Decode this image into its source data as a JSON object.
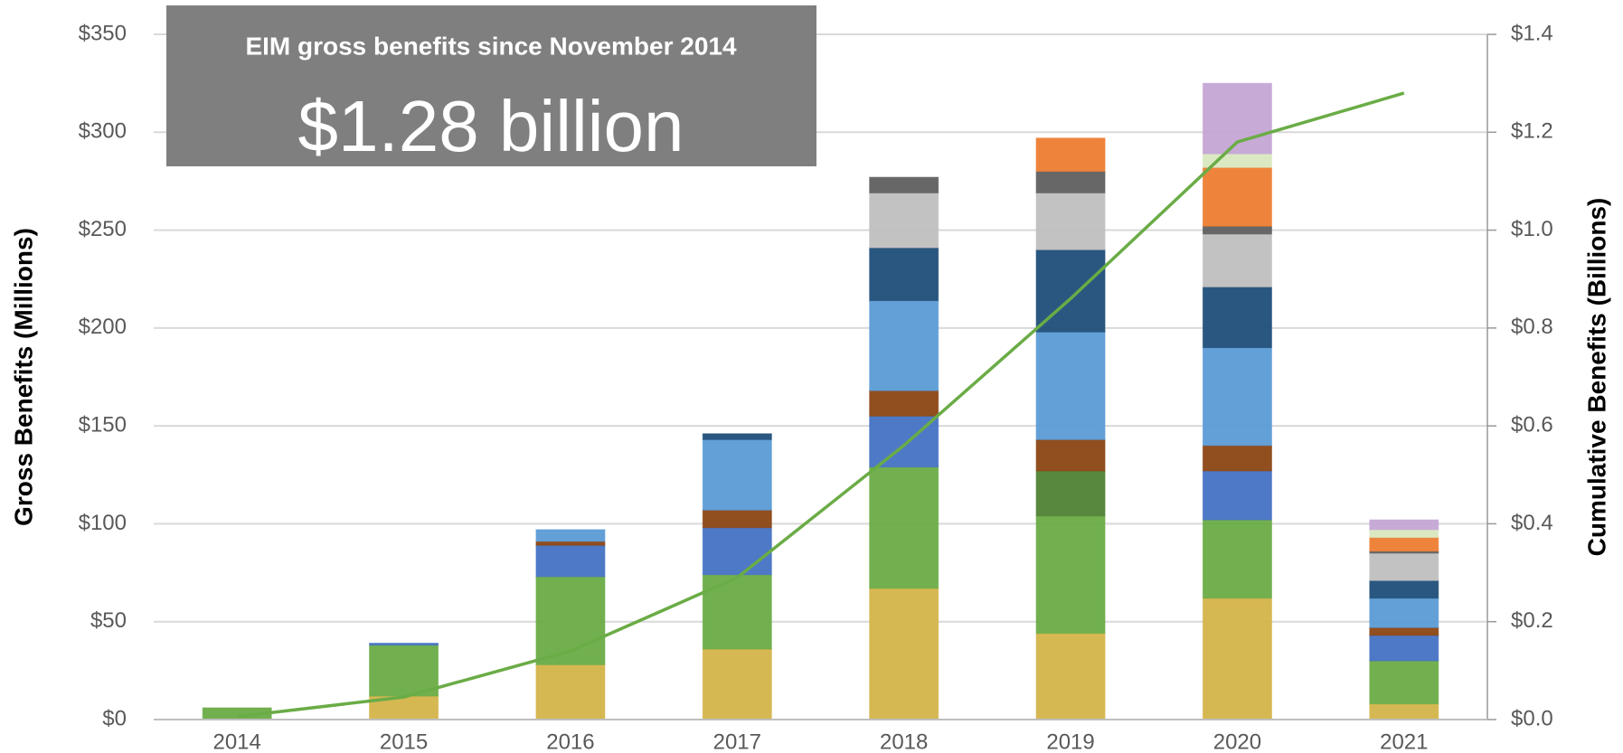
{
  "chart_data": {
    "type": "stacked_bar",
    "categories": [
      "2014",
      "2015",
      "2016",
      "2017",
      "2018",
      "2019",
      "2020",
      "2021"
    ],
    "series": [
      {
        "color": "#d4b44a",
        "values": [
          0,
          12,
          28,
          36,
          67,
          44,
          62,
          8
        ]
      },
      {
        "color": "#6aac46",
        "values": [
          6,
          26,
          45,
          38,
          62,
          60,
          40,
          22
        ]
      },
      {
        "color": "#4f8233",
        "values": [
          0,
          0,
          0,
          0,
          0,
          23,
          0,
          0
        ]
      },
      {
        "color": "#4472c4",
        "values": [
          0,
          1,
          16,
          24,
          26,
          0,
          25,
          13
        ]
      },
      {
        "color": "#8b4513",
        "values": [
          0,
          0,
          2,
          9,
          13,
          16,
          13,
          4
        ]
      },
      {
        "color": "#5b9bd5",
        "values": [
          0,
          0,
          6,
          36,
          46,
          55,
          50,
          15
        ]
      },
      {
        "color": "#1f4e79",
        "values": [
          0,
          0,
          0,
          3,
          27,
          42,
          31,
          9
        ]
      },
      {
        "color": "#bfbfbf",
        "values": [
          0,
          0,
          0,
          0,
          28,
          29,
          27,
          14
        ]
      },
      {
        "color": "#5f5f5f",
        "values": [
          0,
          0,
          0,
          0,
          8,
          11,
          4,
          1
        ]
      },
      {
        "color": "#ed7d31",
        "values": [
          0,
          0,
          0,
          0,
          0,
          17,
          30,
          7
        ]
      },
      {
        "color": "#d9e8c0",
        "values": [
          0,
          0,
          0,
          0,
          0,
          0,
          7,
          4
        ]
      },
      {
        "color": "#c5a5d5",
        "values": [
          0,
          0,
          0,
          0,
          0,
          0,
          36,
          5
        ]
      },
      {
        "type": "line",
        "axis": "y2",
        "color": "#6aac46",
        "values": [
          0.006,
          0.046,
          0.14,
          0.29,
          0.56,
          0.86,
          1.18,
          1.28
        ]
      }
    ],
    "ylabel": "Gross Benefits (Millions)",
    "y2label": "Cumulative Benefits (Billions)",
    "ylim": [
      0,
      350
    ],
    "yticks": [
      {
        "value": 0,
        "label": "$0"
      },
      {
        "value": 50,
        "label": "$50"
      },
      {
        "value": 100,
        "label": "$100"
      },
      {
        "value": 150,
        "label": "$150"
      },
      {
        "value": 200,
        "label": "$200"
      },
      {
        "value": 250,
        "label": "$250"
      },
      {
        "value": 300,
        "label": "$300"
      },
      {
        "value": 350,
        "label": "$350"
      }
    ],
    "y2lim": [
      0,
      1.4
    ],
    "y2ticks": [
      {
        "value": 0,
        "label": "$0.0"
      },
      {
        "value": 0.2,
        "label": "$0.2"
      },
      {
        "value": 0.4,
        "label": "$0.4"
      },
      {
        "value": 0.6,
        "label": "$0.6"
      },
      {
        "value": 0.8,
        "label": "$0.8"
      },
      {
        "value": 1.0,
        "label": "$1.0"
      },
      {
        "value": 1.2,
        "label": "$1.2"
      },
      {
        "value": 1.4,
        "label": "$1.4"
      }
    ],
    "grid": true,
    "annotation": {
      "title": "EIM gross benefits  since November 2014",
      "text": "$1.28 billion"
    }
  }
}
